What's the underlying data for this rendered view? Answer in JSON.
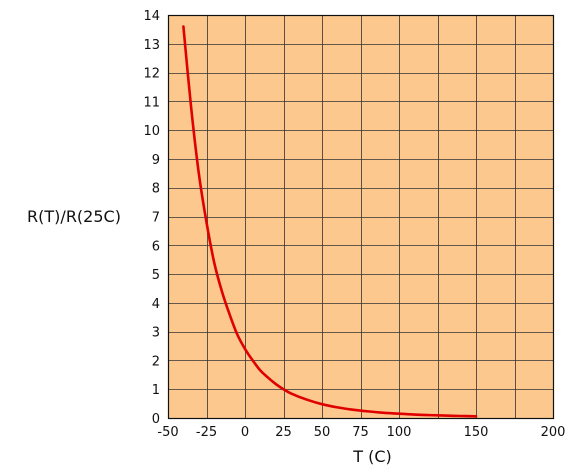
{
  "chart_data": {
    "type": "line",
    "title": "",
    "xlabel": "T (C)",
    "ylabel": "R(T)/R(25C)",
    "xlim": [
      -50,
      200
    ],
    "ylim": [
      0,
      14
    ],
    "x_ticks": [
      -50,
      -25,
      0,
      25,
      50,
      75,
      100,
      150,
      200
    ],
    "y_ticks": [
      0,
      1,
      2,
      3,
      4,
      5,
      6,
      7,
      8,
      9,
      10,
      11,
      12,
      13,
      14
    ],
    "grid": true,
    "legend": "none",
    "series": [
      {
        "x": [
          -40,
          -35,
          -30,
          -25,
          -20,
          -15,
          -10,
          -5,
          0,
          5,
          10,
          15,
          20,
          25,
          30,
          40,
          50,
          60,
          70,
          80,
          90,
          100,
          110,
          120,
          130,
          140,
          150
        ],
        "y": [
          13.6,
          10.8,
          8.5,
          6.8,
          5.4,
          4.4,
          3.6,
          2.9,
          2.4,
          2.0,
          1.65,
          1.4,
          1.18,
          1.0,
          0.85,
          0.64,
          0.48,
          0.37,
          0.29,
          0.23,
          0.18,
          0.15,
          0.12,
          0.1,
          0.085,
          0.07,
          0.06
        ]
      }
    ],
    "colors": {
      "plot_background": "#fcc88e",
      "grid": "#333333",
      "line": "#e00000"
    }
  }
}
